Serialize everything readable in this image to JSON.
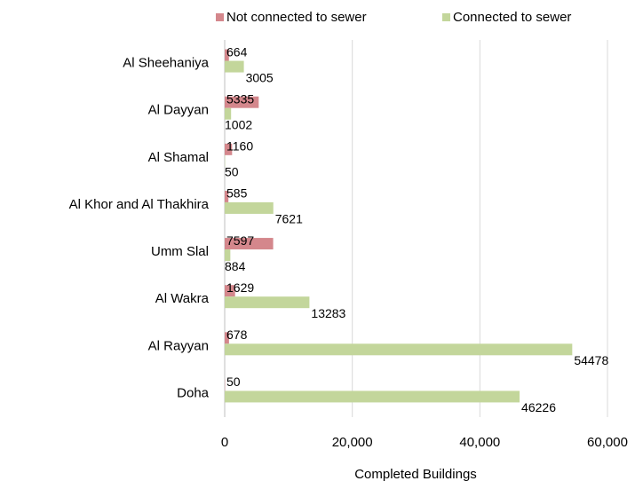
{
  "chart_data": {
    "type": "hbar",
    "categories": [
      "Al Sheehaniya",
      "Al Dayyan",
      "Al Shamal",
      "Al Khor and Al Thakhira",
      "Umm Slal",
      "Al Wakra",
      "Al Rayyan",
      "Doha"
    ],
    "series": [
      {
        "name": "Not connected to sewer",
        "color": "#d4878c",
        "values": [
          664,
          5335,
          1160,
          585,
          7597,
          1629,
          678,
          50
        ]
      },
      {
        "name": "Connected to sewer",
        "color": "#c3d69b",
        "values": [
          3005,
          1002,
          50,
          7621,
          884,
          13283,
          54478,
          46226
        ]
      }
    ],
    "xlabel": "Completed Buildings",
    "xlim": [
      0,
      60000
    ],
    "xticks": [
      0,
      {
        "value": 20000,
        "label": "20,000"
      },
      {
        "value": 40000,
        "label": "40,000"
      },
      {
        "value": 60000,
        "label": "60,000"
      }
    ],
    "grid": true,
    "legend": "top"
  }
}
